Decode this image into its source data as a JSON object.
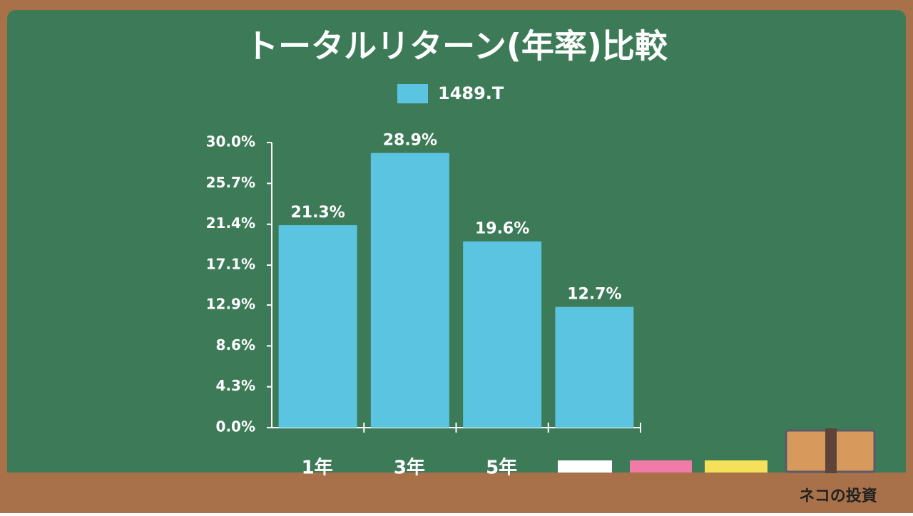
{
  "chart_data": {
    "type": "bar",
    "title": "トータルリターン(年率)比較",
    "categories": [
      "1年",
      "3年",
      "5年",
      null
    ],
    "series": [
      {
        "name": "1489.T",
        "color": "#5bc4e0",
        "values": [
          21.3,
          28.9,
          19.6,
          12.7
        ],
        "value_labels": [
          "21.3%",
          "28.9%",
          "19.6%",
          "12.7%"
        ]
      }
    ],
    "ylim": [
      0,
      30
    ],
    "yticks": [
      {
        "value": 0,
        "label": "0.0%"
      },
      {
        "value": 4.3,
        "label": "4.3%"
      },
      {
        "value": 8.6,
        "label": "8.6%"
      },
      {
        "value": 12.9,
        "label": "12.9%"
      },
      {
        "value": 17.1,
        "label": "17.1%"
      },
      {
        "value": 21.4,
        "label": "21.4%"
      },
      {
        "value": 25.7,
        "label": "25.7%"
      },
      {
        "value": 30,
        "label": "30.0%"
      }
    ],
    "legend": "top",
    "grid": false
  },
  "watermark": "ネコの投資"
}
